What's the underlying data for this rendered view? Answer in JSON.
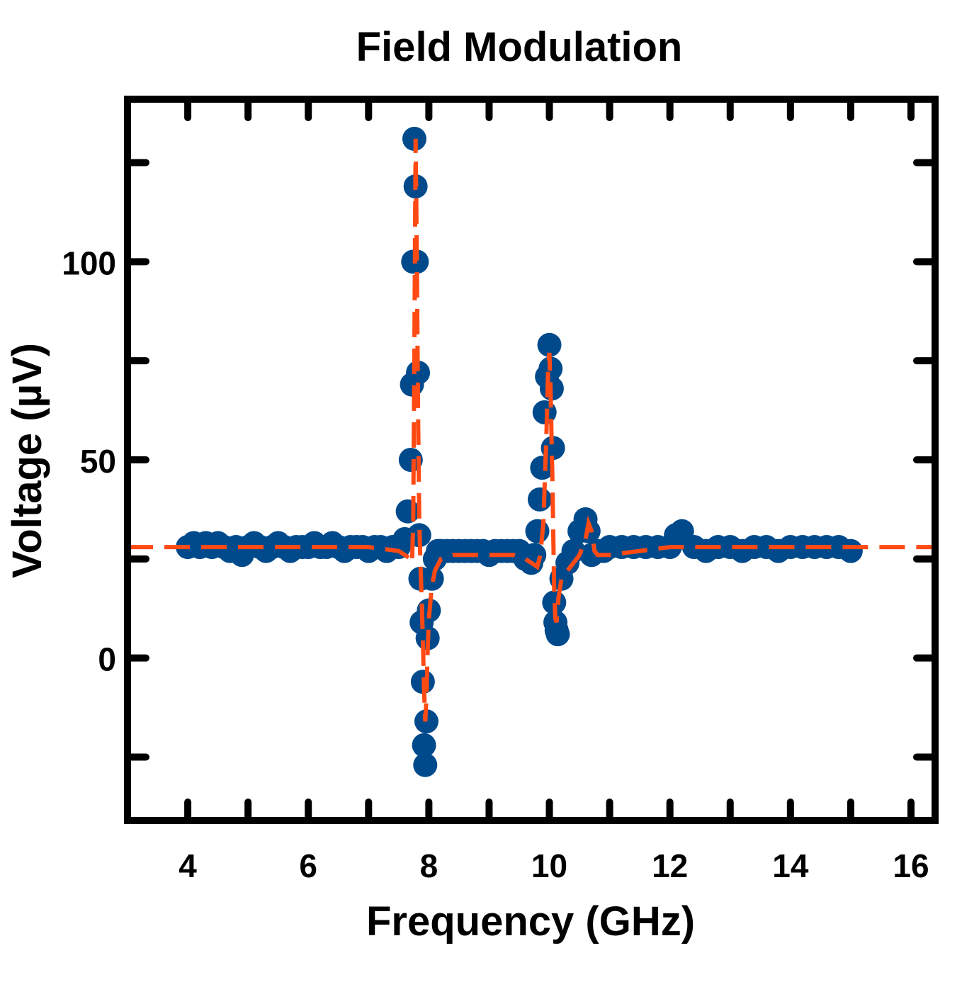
{
  "chart_data": {
    "type": "scatter",
    "title": "Field Modulation",
    "xlabel": "Frequency (GHz)",
    "ylabel": "Voltage (µV)",
    "xlim": [
      3,
      16.4
    ],
    "ylim": [
      -41,
      141
    ],
    "x_ticks": [
      4,
      6,
      8,
      10,
      12,
      14,
      16
    ],
    "y_ticks": [
      0,
      50,
      100
    ],
    "grid": false,
    "legend": "none",
    "colors": {
      "data": "#004a8c",
      "fit": "#ff4a14",
      "axis": "#000000"
    },
    "series": [
      {
        "kind": "points",
        "x": [
          4.0,
          4.1,
          4.2,
          4.3,
          4.4,
          4.5,
          4.6,
          4.7,
          4.8,
          4.9,
          5.0,
          5.1,
          5.2,
          5.3,
          5.4,
          5.5,
          5.6,
          5.7,
          5.8,
          5.9,
          6.0,
          6.1,
          6.2,
          6.3,
          6.4,
          6.5,
          6.6,
          6.7,
          6.8,
          6.9,
          7.0,
          7.1,
          7.2,
          7.3,
          7.4,
          7.5,
          7.6,
          7.65,
          7.7,
          7.72,
          7.74,
          7.76,
          7.78,
          7.8,
          7.82,
          7.84,
          7.86,
          7.88,
          7.9,
          7.92,
          7.94,
          7.96,
          7.98,
          8.0,
          8.05,
          8.1,
          8.15,
          8.2,
          8.3,
          8.4,
          8.5,
          8.6,
          8.7,
          8.8,
          8.9,
          9.0,
          9.1,
          9.2,
          9.3,
          9.4,
          9.5,
          9.6,
          9.7,
          9.75,
          9.8,
          9.84,
          9.88,
          9.92,
          9.96,
          10.0,
          10.02,
          10.04,
          10.06,
          10.08,
          10.1,
          10.12,
          10.14,
          10.2,
          10.3,
          10.4,
          10.5,
          10.6,
          10.65,
          10.7,
          10.8,
          10.9,
          11.0,
          11.2,
          11.4,
          11.6,
          11.8,
          12.0,
          12.1,
          12.2,
          12.4,
          12.6,
          12.8,
          13.0,
          13.2,
          13.4,
          13.6,
          13.8,
          14.0,
          14.2,
          14.4,
          14.6,
          14.8,
          15.0
        ],
        "y": [
          28,
          29,
          28,
          29,
          28,
          29,
          28,
          27,
          28,
          26,
          28,
          29,
          28,
          27,
          28,
          29,
          28,
          27,
          28,
          28,
          28,
          29,
          28,
          28,
          29,
          28,
          27,
          28,
          28,
          28,
          27,
          28,
          28,
          27,
          28,
          28,
          30,
          37,
          50,
          69,
          100,
          131,
          119,
          100,
          72,
          31,
          20,
          9,
          -6,
          -22,
          -27,
          -16,
          5,
          12,
          20,
          25,
          27,
          27,
          27,
          27,
          27,
          27,
          27,
          27,
          27,
          26,
          27,
          27,
          27,
          27,
          27,
          25,
          24,
          26,
          32,
          40,
          48,
          62,
          71,
          79,
          73,
          68,
          53,
          14,
          9,
          7,
          6,
          20,
          24,
          27,
          32,
          35,
          32,
          26,
          27,
          27,
          28,
          28,
          28,
          28,
          28,
          28,
          31,
          32,
          28,
          27,
          28,
          28,
          27,
          28,
          28,
          27,
          28,
          28,
          28,
          28,
          28,
          27
        ]
      },
      {
        "kind": "dashed-line",
        "x": [
          3.0,
          7.0,
          7.5,
          7.6,
          7.7,
          7.72,
          7.74,
          7.76,
          7.78,
          7.8,
          7.82,
          7.84,
          7.86,
          7.88,
          7.9,
          7.92,
          7.94,
          7.96,
          7.98,
          8.0,
          8.05,
          8.1,
          8.2,
          8.4,
          8.6,
          9.0,
          9.4,
          9.6,
          9.7,
          9.8,
          9.85,
          9.9,
          9.95,
          9.98,
          10.0,
          10.02,
          10.05,
          10.08,
          10.1,
          10.12,
          10.15,
          10.2,
          10.3,
          10.4,
          10.5,
          10.6,
          10.65,
          10.7,
          10.75,
          10.8,
          11.0,
          11.5,
          12.0,
          13.0,
          16.4
        ],
        "y": [
          28,
          28,
          27,
          26,
          25,
          24,
          34,
          79,
          131,
          101,
          63,
          35,
          24,
          15,
          5,
          -8,
          -16,
          -10,
          2,
          10,
          18,
          22,
          25,
          26,
          26,
          26,
          26,
          25,
          24,
          23,
          26,
          34,
          56,
          73,
          77,
          68,
          45,
          17,
          10,
          9,
          15,
          20,
          22,
          24,
          26,
          30,
          34,
          32,
          27,
          26,
          26,
          27,
          28,
          28,
          28
        ]
      }
    ]
  }
}
